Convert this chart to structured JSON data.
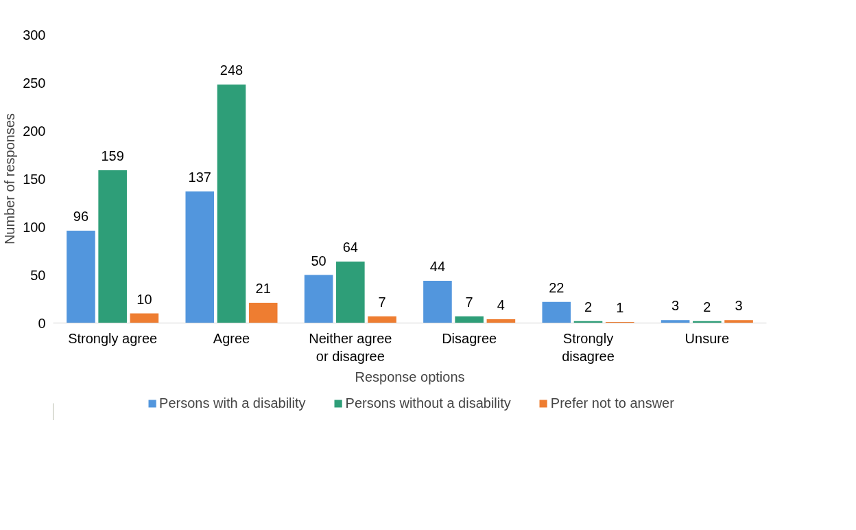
{
  "chart_data": {
    "type": "bar",
    "xlabel": "Response options",
    "ylabel": "Number of responses",
    "categories": [
      "Strongly agree",
      "Agree",
      "Neither agree\nor disagree",
      "Disagree",
      "Strongly\ndisagree",
      "Unsure"
    ],
    "series": [
      {
        "name": "Persons with a disability",
        "color": "#5296dd",
        "values": [
          96,
          137,
          50,
          44,
          22,
          3
        ]
      },
      {
        "name": "Persons without a disability",
        "color": "#2e9e78",
        "values": [
          159,
          248,
          64,
          7,
          2,
          2
        ]
      },
      {
        "name": "Prefer not to answer",
        "color": "#ee7d31",
        "values": [
          10,
          21,
          7,
          4,
          1,
          3
        ]
      }
    ],
    "ylim": [
      0,
      300
    ],
    "yticks": [
      0,
      50,
      100,
      150,
      200,
      250,
      300
    ],
    "grid": false,
    "legend": "bottom",
    "data_labels": true
  }
}
